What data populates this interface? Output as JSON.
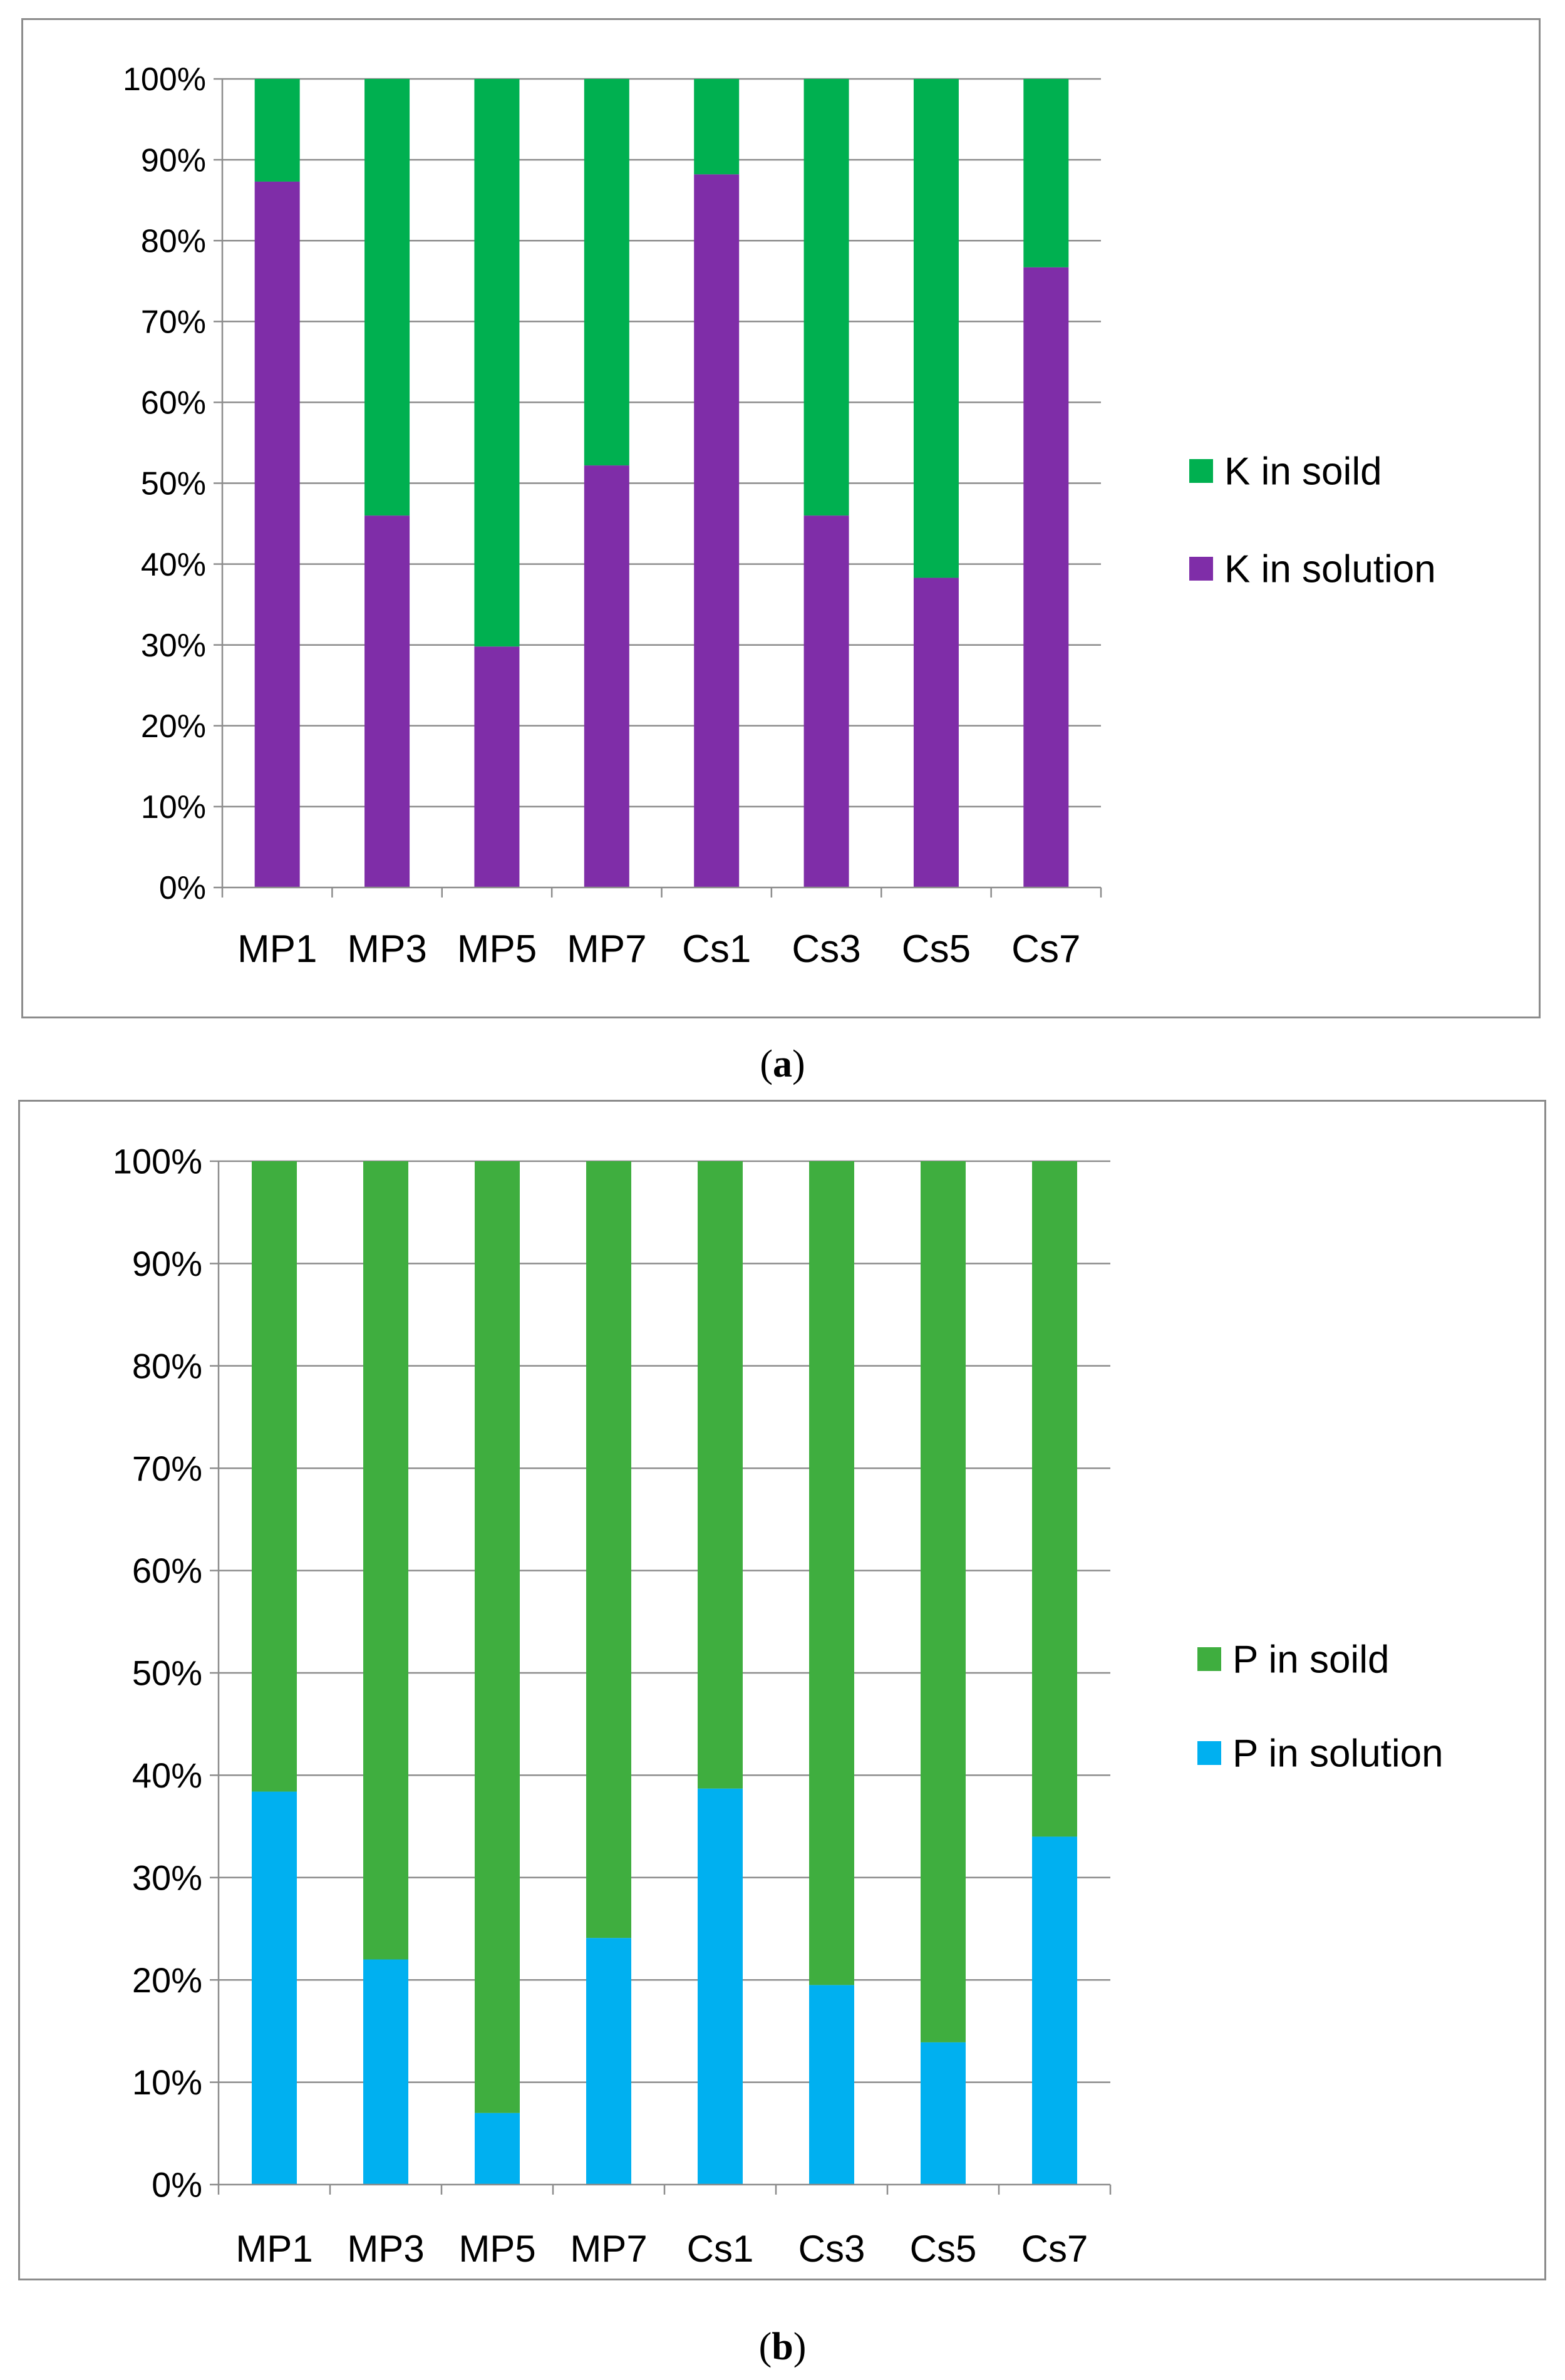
{
  "chart_data": [
    {
      "type": "bar",
      "stacked": true,
      "panel_label": "a",
      "categories": [
        "MP1",
        "MP3",
        "MP5",
        "MP7",
        "Cs1",
        "Cs3",
        "Cs5",
        "Cs7"
      ],
      "series": [
        {
          "name": "K in solution",
          "color": "#7f2da8",
          "values": [
            87.3,
            46,
            29.8,
            52.2,
            88.2,
            46,
            38.3,
            76.7
          ]
        },
        {
          "name": "K in soild",
          "color": "#00b050",
          "values": [
            12.7,
            54,
            70.2,
            47.8,
            11.8,
            54,
            61.7,
            23.3
          ]
        }
      ],
      "y_ticks": [
        "0%",
        "10%",
        "20%",
        "30%",
        "40%",
        "50%",
        "60%",
        "70%",
        "80%",
        "90%",
        "100%"
      ],
      "ylim": [
        0,
        100
      ],
      "grid": true,
      "legend": [
        "K in soild",
        "K in solution"
      ],
      "legend_position": "right"
    },
    {
      "type": "bar",
      "stacked": true,
      "panel_label": "b",
      "categories": [
        "MP1",
        "MP3",
        "MP5",
        "MP7",
        "Cs1",
        "Cs3",
        "Cs5",
        "Cs7"
      ],
      "series": [
        {
          "name": "P in solution",
          "color": "#00b0f0",
          "values": [
            38.4,
            22,
            7,
            24.1,
            38.7,
            19.5,
            13.9,
            34
          ]
        },
        {
          "name": "P in soild",
          "color": "#3fae3f",
          "values": [
            61.6,
            78,
            93,
            75.9,
            61.3,
            80.5,
            86.1,
            66
          ]
        }
      ],
      "y_ticks": [
        "0%",
        "10%",
        "20%",
        "30%",
        "40%",
        "50%",
        "60%",
        "70%",
        "80%",
        "90%",
        "100%"
      ],
      "ylim": [
        0,
        100
      ],
      "grid": true,
      "legend": [
        "P in soild",
        "P in solution"
      ],
      "legend_position": "right"
    }
  ],
  "captions": {
    "a": "a",
    "b": "b"
  }
}
